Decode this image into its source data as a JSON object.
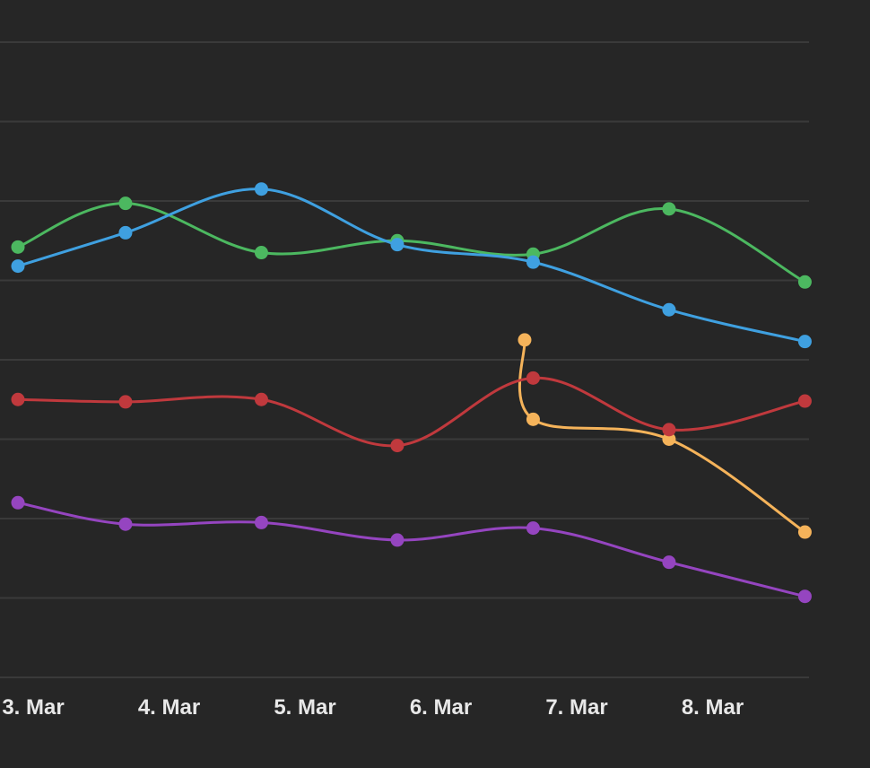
{
  "chart_data": {
    "type": "line",
    "title": "",
    "xlabel": "",
    "ylabel": "",
    "x_axis_type": "date",
    "x_ticks": [
      "3. Mar",
      "4. Mar",
      "5. Mar",
      "6. Mar",
      "7. Mar",
      "8. Mar"
    ],
    "y_gridlines": 9,
    "grid": true,
    "legend": "none",
    "series": [
      {
        "color": "#4cb860",
        "points": [
          {
            "x": "2021-03-03T00:00",
            "y": 5.42
          },
          {
            "x": "2021-03-03T19:00",
            "y": 5.97
          },
          {
            "x": "2021-03-04T19:00",
            "y": 5.35
          },
          {
            "x": "2021-03-05T19:00",
            "y": 5.5
          },
          {
            "x": "2021-03-06T19:00",
            "y": 5.33
          },
          {
            "x": "2021-03-07T19:00",
            "y": 5.9
          },
          {
            "x": "2021-03-08T19:00",
            "y": 4.98
          }
        ]
      },
      {
        "color": "#3fa0e0",
        "points": [
          {
            "x": "2021-03-03T00:00",
            "y": 5.18
          },
          {
            "x": "2021-03-03T19:00",
            "y": 5.6
          },
          {
            "x": "2021-03-04T19:00",
            "y": 6.15
          },
          {
            "x": "2021-03-05T19:00",
            "y": 5.45
          },
          {
            "x": "2021-03-06T19:00",
            "y": 5.23
          },
          {
            "x": "2021-03-07T19:00",
            "y": 4.63
          },
          {
            "x": "2021-03-08T19:00",
            "y": 4.23
          }
        ]
      },
      {
        "color": "#f5b35a",
        "points": [
          {
            "x": "2021-03-06T17:30",
            "y": 4.25
          },
          {
            "x": "2021-03-06T19:00",
            "y": 3.25
          },
          {
            "x": "2021-03-07T19:00",
            "y": 3.0
          },
          {
            "x": "2021-03-08T19:00",
            "y": 1.83
          }
        ]
      },
      {
        "color": "#c0393d",
        "points": [
          {
            "x": "2021-03-03T00:00",
            "y": 3.5
          },
          {
            "x": "2021-03-03T19:00",
            "y": 3.47
          },
          {
            "x": "2021-03-04T19:00",
            "y": 3.5
          },
          {
            "x": "2021-03-05T19:00",
            "y": 2.92
          },
          {
            "x": "2021-03-06T19:00",
            "y": 3.77
          },
          {
            "x": "2021-03-07T19:00",
            "y": 3.12
          },
          {
            "x": "2021-03-08T19:00",
            "y": 3.48
          }
        ]
      },
      {
        "color": "#9545c0",
        "points": [
          {
            "x": "2021-03-03T00:00",
            "y": 2.2
          },
          {
            "x": "2021-03-03T19:00",
            "y": 1.93
          },
          {
            "x": "2021-03-04T19:00",
            "y": 1.95
          },
          {
            "x": "2021-03-05T19:00",
            "y": 1.73
          },
          {
            "x": "2021-03-06T19:00",
            "y": 1.88
          },
          {
            "x": "2021-03-07T19:00",
            "y": 1.45
          },
          {
            "x": "2021-03-08T19:00",
            "y": 1.02
          }
        ]
      }
    ]
  }
}
